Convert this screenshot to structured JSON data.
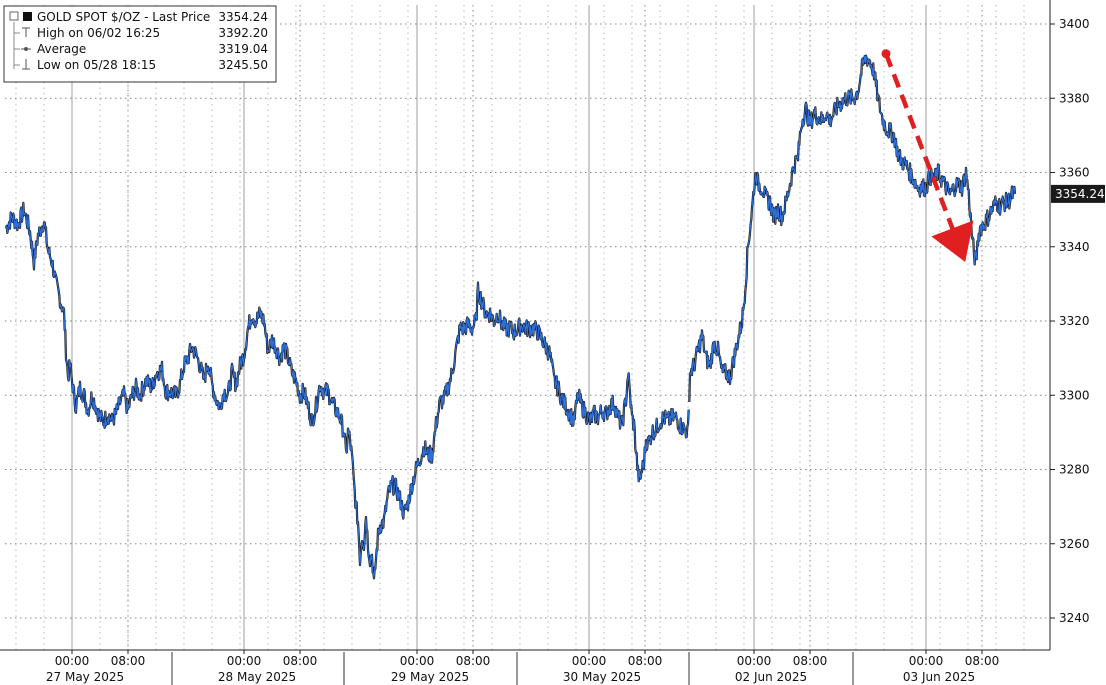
{
  "chart_data": {
    "type": "line",
    "legend": {
      "title": "GOLD SPOT $/OZ - Last Price",
      "title_value": "3354.24",
      "rows": [
        {
          "label": "High on 06/02 16:25",
          "value": "3392.20"
        },
        {
          "label": "Average",
          "value": "3319.04"
        },
        {
          "label": "Low on 05/28 18:15",
          "value": "3245.50"
        }
      ]
    },
    "last_price_label": "3354.24",
    "last_price": 3354.24,
    "ylim": [
      3230,
      3405
    ],
    "y_ticks": [
      3240,
      3260,
      3280,
      3300,
      3320,
      3340,
      3360,
      3380,
      3400
    ],
    "xlim": [
      0,
      1030
    ],
    "x_ticks": [
      {
        "t": 72,
        "label": "00:00"
      },
      {
        "t": 128,
        "label": "08:00"
      },
      {
        "t": 244,
        "label": "00:00"
      },
      {
        "t": 300,
        "label": "08:00"
      },
      {
        "t": 417,
        "label": "00:00"
      },
      {
        "t": 473,
        "label": "08:00"
      },
      {
        "t": 589,
        "label": "00:00"
      },
      {
        "t": 645,
        "label": "08:00"
      },
      {
        "t": 754,
        "label": "00:00"
      },
      {
        "t": 810,
        "label": "08:00"
      },
      {
        "t": 926,
        "label": "00:00"
      },
      {
        "t": 982,
        "label": "08:00"
      }
    ],
    "dates": [
      {
        "t": 85,
        "label": "27 May 2025"
      },
      {
        "t": 257,
        "label": "28 May 2025"
      },
      {
        "t": 430,
        "label": "29 May 2025"
      },
      {
        "t": 602,
        "label": "30 May 2025"
      },
      {
        "t": 771,
        "label": "02 Jun 2025"
      },
      {
        "t": 939,
        "label": "03 Jun 2025"
      }
    ],
    "day_separators": [
      172,
      344,
      517,
      689,
      853
    ],
    "series": [
      {
        "values": [
          [
            6,
            3345
          ],
          [
            12,
            3348
          ],
          [
            18,
            3346
          ],
          [
            24,
            3350
          ],
          [
            30,
            3344
          ],
          [
            34,
            3336
          ],
          [
            38,
            3343
          ],
          [
            44,
            3347
          ],
          [
            48,
            3339
          ],
          [
            52,
            3336
          ],
          [
            56,
            3330
          ],
          [
            60,
            3326
          ],
          [
            64,
            3322
          ],
          [
            66,
            3312
          ],
          [
            68,
            3305
          ],
          [
            70,
            3308
          ],
          [
            74,
            3300
          ],
          [
            76,
            3297
          ],
          [
            80,
            3302
          ],
          [
            84,
            3300
          ],
          [
            88,
            3296
          ],
          [
            92,
            3300
          ],
          [
            96,
            3297
          ],
          [
            100,
            3294
          ],
          [
            104,
            3293
          ],
          [
            108,
            3295
          ],
          [
            112,
            3293
          ],
          [
            116,
            3295
          ],
          [
            120,
            3298
          ],
          [
            124,
            3300
          ],
          [
            128,
            3296
          ],
          [
            132,
            3300
          ],
          [
            136,
            3302
          ],
          [
            140,
            3300
          ],
          [
            146,
            3304
          ],
          [
            152,
            3302
          ],
          [
            156,
            3306
          ],
          [
            162,
            3307
          ],
          [
            166,
            3301
          ],
          [
            170,
            3301
          ],
          [
            176,
            3300
          ],
          [
            180,
            3303
          ],
          [
            184,
            3308
          ],
          [
            188,
            3310
          ],
          [
            192,
            3313
          ],
          [
            196,
            3311
          ],
          [
            200,
            3308
          ],
          [
            204,
            3304
          ],
          [
            208,
            3309
          ],
          [
            212,
            3303
          ],
          [
            216,
            3299
          ],
          [
            220,
            3297
          ],
          [
            224,
            3301
          ],
          [
            228,
            3300
          ],
          [
            232,
            3306
          ],
          [
            236,
            3303
          ],
          [
            240,
            3308
          ],
          [
            244,
            3311
          ],
          [
            248,
            3318
          ],
          [
            252,
            3322
          ],
          [
            256,
            3320
          ],
          [
            260,
            3322
          ],
          [
            264,
            3320
          ],
          [
            268,
            3312
          ],
          [
            272,
            3315
          ],
          [
            276,
            3313
          ],
          [
            280,
            3310
          ],
          [
            284,
            3313
          ],
          [
            288,
            3310
          ],
          [
            292,
            3306
          ],
          [
            296,
            3304
          ],
          [
            300,
            3300
          ],
          [
            304,
            3301
          ],
          [
            308,
            3297
          ],
          [
            312,
            3293
          ],
          [
            316,
            3297
          ],
          [
            320,
            3303
          ],
          [
            324,
            3301
          ],
          [
            328,
            3301
          ],
          [
            332,
            3298
          ],
          [
            336,
            3296
          ],
          [
            340,
            3294
          ],
          [
            344,
            3290
          ],
          [
            346,
            3284
          ],
          [
            348,
            3290
          ],
          [
            350,
            3288
          ],
          [
            352,
            3283
          ],
          [
            354,
            3276
          ],
          [
            356,
            3270
          ],
          [
            358,
            3266
          ],
          [
            360,
            3256
          ],
          [
            362,
            3262
          ],
          [
            364,
            3260
          ],
          [
            366,
            3268
          ],
          [
            368,
            3260
          ],
          [
            370,
            3256
          ],
          [
            372,
            3257
          ],
          [
            374,
            3249
          ],
          [
            376,
            3256
          ],
          [
            378,
            3262
          ],
          [
            380,
            3265
          ],
          [
            384,
            3266
          ],
          [
            388,
            3273
          ],
          [
            392,
            3276
          ],
          [
            396,
            3275
          ],
          [
            400,
            3272
          ],
          [
            404,
            3268
          ],
          [
            408,
            3271
          ],
          [
            412,
            3276
          ],
          [
            416,
            3280
          ],
          [
            420,
            3283
          ],
          [
            424,
            3286
          ],
          [
            428,
            3284
          ],
          [
            432,
            3284
          ],
          [
            436,
            3292
          ],
          [
            440,
            3298
          ],
          [
            444,
            3299
          ],
          [
            448,
            3302
          ],
          [
            452,
            3306
          ],
          [
            456,
            3312
          ],
          [
            460,
            3318
          ],
          [
            464,
            3318
          ],
          [
            468,
            3319
          ],
          [
            472,
            3318
          ],
          [
            476,
            3320
          ],
          [
            478,
            3328
          ],
          [
            480,
            3327
          ],
          [
            482,
            3325
          ],
          [
            486,
            3322
          ],
          [
            490,
            3322
          ],
          [
            494,
            3320
          ],
          [
            498,
            3322
          ],
          [
            502,
            3319
          ],
          [
            506,
            3318
          ],
          [
            510,
            3318
          ],
          [
            514,
            3317
          ],
          [
            518,
            3318
          ],
          [
            522,
            3319
          ],
          [
            526,
            3318
          ],
          [
            530,
            3318
          ],
          [
            534,
            3318
          ],
          [
            538,
            3317
          ],
          [
            542,
            3315
          ],
          [
            546,
            3313
          ],
          [
            550,
            3311
          ],
          [
            554,
            3304
          ],
          [
            558,
            3302
          ],
          [
            562,
            3299
          ],
          [
            566,
            3297
          ],
          [
            570,
            3295
          ],
          [
            574,
            3293
          ],
          [
            578,
            3300
          ],
          [
            582,
            3297
          ],
          [
            586,
            3295
          ],
          [
            590,
            3293
          ],
          [
            594,
            3295
          ],
          [
            598,
            3294
          ],
          [
            602,
            3296
          ],
          [
            606,
            3295
          ],
          [
            610,
            3297
          ],
          [
            614,
            3298
          ],
          [
            618,
            3294
          ],
          [
            622,
            3292
          ],
          [
            626,
            3299
          ],
          [
            628,
            3306
          ],
          [
            630,
            3300
          ],
          [
            632,
            3294
          ],
          [
            634,
            3292
          ],
          [
            636,
            3285
          ],
          [
            638,
            3279
          ],
          [
            640,
            3277
          ],
          [
            642,
            3280
          ],
          [
            644,
            3282
          ],
          [
            646,
            3288
          ],
          [
            648,
            3287
          ],
          [
            652,
            3290
          ],
          [
            656,
            3291
          ],
          [
            660,
            3293
          ],
          [
            664,
            3294
          ],
          [
            668,
            3293
          ],
          [
            672,
            3294
          ],
          [
            676,
            3294
          ],
          [
            680,
            3292
          ],
          [
            684,
            3291
          ],
          [
            688,
            3290
          ],
          [
            690,
            3306
          ],
          [
            694,
            3308
          ],
          [
            698,
            3312
          ],
          [
            702,
            3316
          ],
          [
            706,
            3310
          ],
          [
            710,
            3308
          ],
          [
            714,
            3314
          ],
          [
            718,
            3312
          ],
          [
            722,
            3306
          ],
          [
            726,
            3306
          ],
          [
            730,
            3305
          ],
          [
            734,
            3310
          ],
          [
            738,
            3315
          ],
          [
            742,
            3320
          ],
          [
            744,
            3325
          ],
          [
            746,
            3332
          ],
          [
            748,
            3340
          ],
          [
            750,
            3345
          ],
          [
            752,
            3350
          ],
          [
            754,
            3356
          ],
          [
            756,
            3360
          ],
          [
            758,
            3357
          ],
          [
            762,
            3356
          ],
          [
            766,
            3353
          ],
          [
            770,
            3352
          ],
          [
            774,
            3348
          ],
          [
            778,
            3350
          ],
          [
            782,
            3348
          ],
          [
            786,
            3352
          ],
          [
            790,
            3357
          ],
          [
            794,
            3362
          ],
          [
            798,
            3364
          ],
          [
            800,
            3370
          ],
          [
            802,
            3374
          ],
          [
            806,
            3377
          ],
          [
            810,
            3373
          ],
          [
            814,
            3376
          ],
          [
            818,
            3375
          ],
          [
            822,
            3374
          ],
          [
            826,
            3376
          ],
          [
            830,
            3374
          ],
          [
            834,
            3376
          ],
          [
            838,
            3378
          ],
          [
            842,
            3379
          ],
          [
            846,
            3380
          ],
          [
            850,
            3380
          ],
          [
            854,
            3380
          ],
          [
            858,
            3382
          ],
          [
            862,
            3388
          ],
          [
            866,
            3391
          ],
          [
            870,
            3390
          ],
          [
            874,
            3387
          ],
          [
            878,
            3380
          ],
          [
            882,
            3375
          ],
          [
            886,
            3372
          ],
          [
            890,
            3371
          ],
          [
            894,
            3370
          ],
          [
            898,
            3365
          ],
          [
            902,
            3363
          ],
          [
            906,
            3362
          ],
          [
            910,
            3360
          ],
          [
            914,
            3358
          ],
          [
            918,
            3356
          ],
          [
            922,
            3356
          ],
          [
            926,
            3356
          ],
          [
            930,
            3359
          ],
          [
            934,
            3358
          ],
          [
            938,
            3360
          ],
          [
            942,
            3358
          ],
          [
            946,
            3356
          ],
          [
            950,
            3354
          ],
          [
            954,
            3356
          ],
          [
            958,
            3357
          ],
          [
            962,
            3356
          ],
          [
            966,
            3360
          ],
          [
            968,
            3356
          ],
          [
            970,
            3350
          ],
          [
            972,
            3343
          ],
          [
            974,
            3338
          ],
          [
            976,
            3336
          ],
          [
            978,
            3342
          ],
          [
            980,
            3345
          ],
          [
            984,
            3346
          ],
          [
            988,
            3348
          ],
          [
            992,
            3350
          ],
          [
            996,
            3352
          ],
          [
            1000,
            3351
          ],
          [
            1004,
            3352
          ],
          [
            1008,
            3352
          ],
          [
            1012,
            3354
          ],
          [
            1015,
            3354.24
          ]
        ]
      }
    ],
    "annotation_arrow": {
      "type": "dashed-arrow",
      "color": "#e02020",
      "from": [
        886,
        3392
      ],
      "to": [
        968,
        3336
      ]
    }
  }
}
